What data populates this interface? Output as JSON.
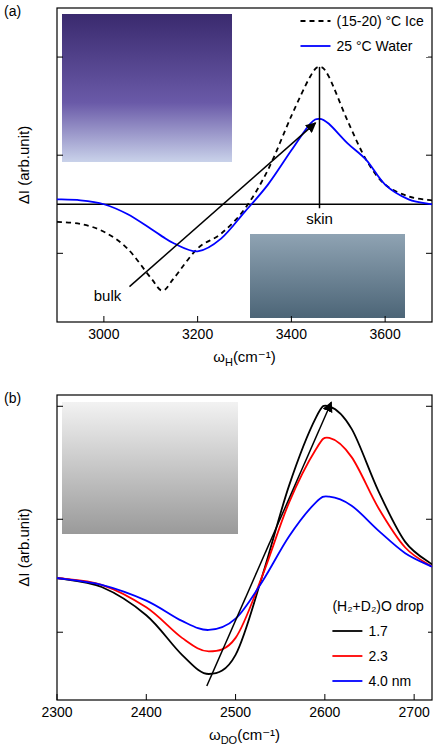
{
  "chart_data": [
    {
      "type": "line",
      "label": "(a)",
      "x_label": "ωH(cm⁻¹)",
      "y_label": "ΔI (arb.unit)",
      "x": [
        2900,
        2950,
        3000,
        3050,
        3100,
        3125,
        3150,
        3200,
        3250,
        3300,
        3350,
        3400,
        3440,
        3460,
        3480,
        3520,
        3560,
        3600,
        3650,
        3700
      ],
      "xlim": [
        2900,
        3700
      ],
      "xticks": [
        3000,
        3200,
        3400,
        3600
      ],
      "ylim": [
        -1.2,
        2.0
      ],
      "yticks": [
        -0.5,
        0.5,
        1.5
      ],
      "tick_labels": "x",
      "grid": false,
      "legend": "upper right",
      "annotations": [
        "bulk",
        "skin"
      ],
      "series": [
        {
          "name": "(15-20) °C Ice",
          "color": "#000000",
          "line_style": "dashed",
          "values": [
            -0.18,
            -0.2,
            -0.28,
            -0.45,
            -0.75,
            -0.88,
            -0.75,
            -0.45,
            -0.3,
            -0.05,
            0.35,
            0.9,
            1.3,
            1.4,
            1.3,
            0.85,
            0.45,
            0.2,
            0.08,
            0.04
          ]
        },
        {
          "name": "25 °C Water",
          "color": "#0000ff",
          "line_style": "solid",
          "values": [
            0.05,
            0.04,
            0.0,
            -0.1,
            -0.25,
            -0.33,
            -0.4,
            -0.48,
            -0.35,
            -0.08,
            0.2,
            0.55,
            0.82,
            0.87,
            0.82,
            0.62,
            0.45,
            0.2,
            0.05,
            0.0
          ]
        }
      ]
    },
    {
      "type": "line",
      "label": "(b)",
      "x_label": "ωDO(cm⁻¹)",
      "y_label": "ΔI (arb.unit)",
      "x": [
        2300,
        2350,
        2400,
        2440,
        2470,
        2500,
        2530,
        2560,
        2590,
        2605,
        2630,
        2660,
        2690,
        2720
      ],
      "xlim": [
        2300,
        2720
      ],
      "xticks": [
        2300,
        2400,
        2500,
        2600,
        2700
      ],
      "ylim": [
        -1.1,
        1.6
      ],
      "yticks": [
        -0.5,
        0.5,
        1.5
      ],
      "tick_labels": "x",
      "grid": false,
      "legend": "lower right",
      "legend_title": "(H₂+D₂)O drop",
      "series": [
        {
          "name": "1.7",
          "color": "#000000",
          "line_style": "solid",
          "values": [
            -0.02,
            -0.1,
            -0.35,
            -0.7,
            -0.87,
            -0.7,
            0.0,
            0.8,
            1.4,
            1.5,
            1.3,
            0.75,
            0.3,
            0.1
          ]
        },
        {
          "name": "2.3",
          "color": "#ff0000",
          "line_style": "solid",
          "values": [
            -0.02,
            -0.08,
            -0.28,
            -0.55,
            -0.67,
            -0.55,
            0.0,
            0.65,
            1.12,
            1.22,
            1.05,
            0.6,
            0.25,
            0.08
          ]
        },
        {
          "name": "4.0 nm",
          "color": "#0000ff",
          "line_style": "solid",
          "values": [
            -0.02,
            -0.08,
            -0.22,
            -0.4,
            -0.48,
            -0.38,
            -0.05,
            0.35,
            0.65,
            0.7,
            0.62,
            0.4,
            0.2,
            0.08
          ]
        }
      ]
    }
  ]
}
